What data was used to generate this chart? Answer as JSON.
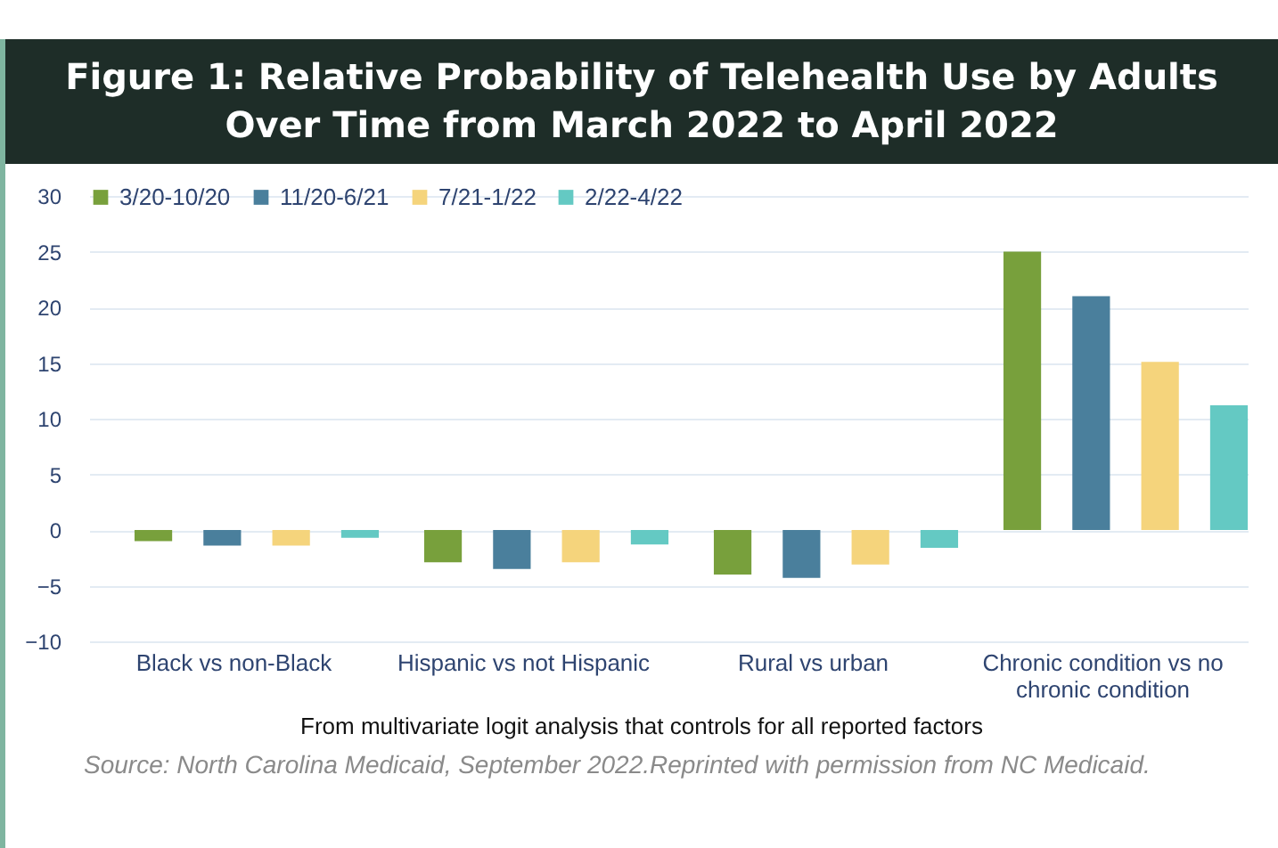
{
  "chart_data": {
    "type": "bar",
    "title": "Figure 1: Relative Probability of Telehealth Use by Adults Over Time from March 2022 to April 2022",
    "xlabel": "From multivariate logit analysis that controls for all reported factors",
    "annotations": [
      "Source: North Carolina Medicaid, September 2022.Reprinted with permission from NC Medicaid."
    ],
    "categories": [
      "Black vs non-Black",
      "Hispanic vs not Hispanic",
      "Rural vs urban",
      "Chronic condition vs no chronic condition"
    ],
    "series": [
      {
        "name": "3/20-10/20",
        "color": "#78a03c",
        "values": [
          -1.0,
          -2.9,
          -4.0,
          25
        ]
      },
      {
        "name": "11/20-6/21",
        "color": "#4a7f9c",
        "values": [
          -1.4,
          -3.5,
          -4.3,
          21.0
        ]
      },
      {
        "name": "7/21-1/22",
        "color": "#f5d47c",
        "values": [
          -1.4,
          -2.9,
          -3.1,
          15.1
        ]
      },
      {
        "name": "2/22-4/22",
        "color": "#64c9c3",
        "values": [
          -0.7,
          -1.3,
          -1.6,
          11.2
        ]
      }
    ],
    "ylim": [
      -10,
      30
    ],
    "yticks": [
      -10,
      -5,
      0,
      5,
      10,
      15,
      20,
      25,
      30
    ],
    "grid": "y",
    "legend": "top"
  }
}
